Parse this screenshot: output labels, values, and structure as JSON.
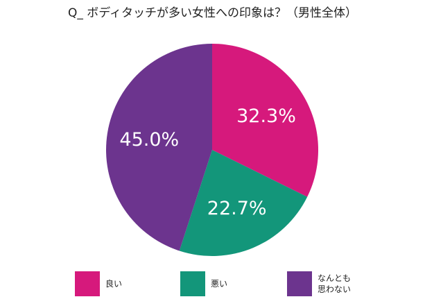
{
  "chart_data": {
    "type": "pie",
    "title": "Q_ ボディタッチが多い女性への印象は？（男性全体）",
    "slices": [
      {
        "label": "良い",
        "value": 32.3,
        "value_label": "32.3%",
        "color": "#d6197c"
      },
      {
        "label": "悪い",
        "value": 22.7,
        "value_label": "22.7%",
        "color": "#13967a"
      },
      {
        "label": "なんとも\n思わない",
        "value": 45.0,
        "value_label": "45.0%",
        "color": "#6c348e"
      }
    ],
    "start_angle": "12 o'clock",
    "direction": "clockwise",
    "legend": "bottom"
  }
}
